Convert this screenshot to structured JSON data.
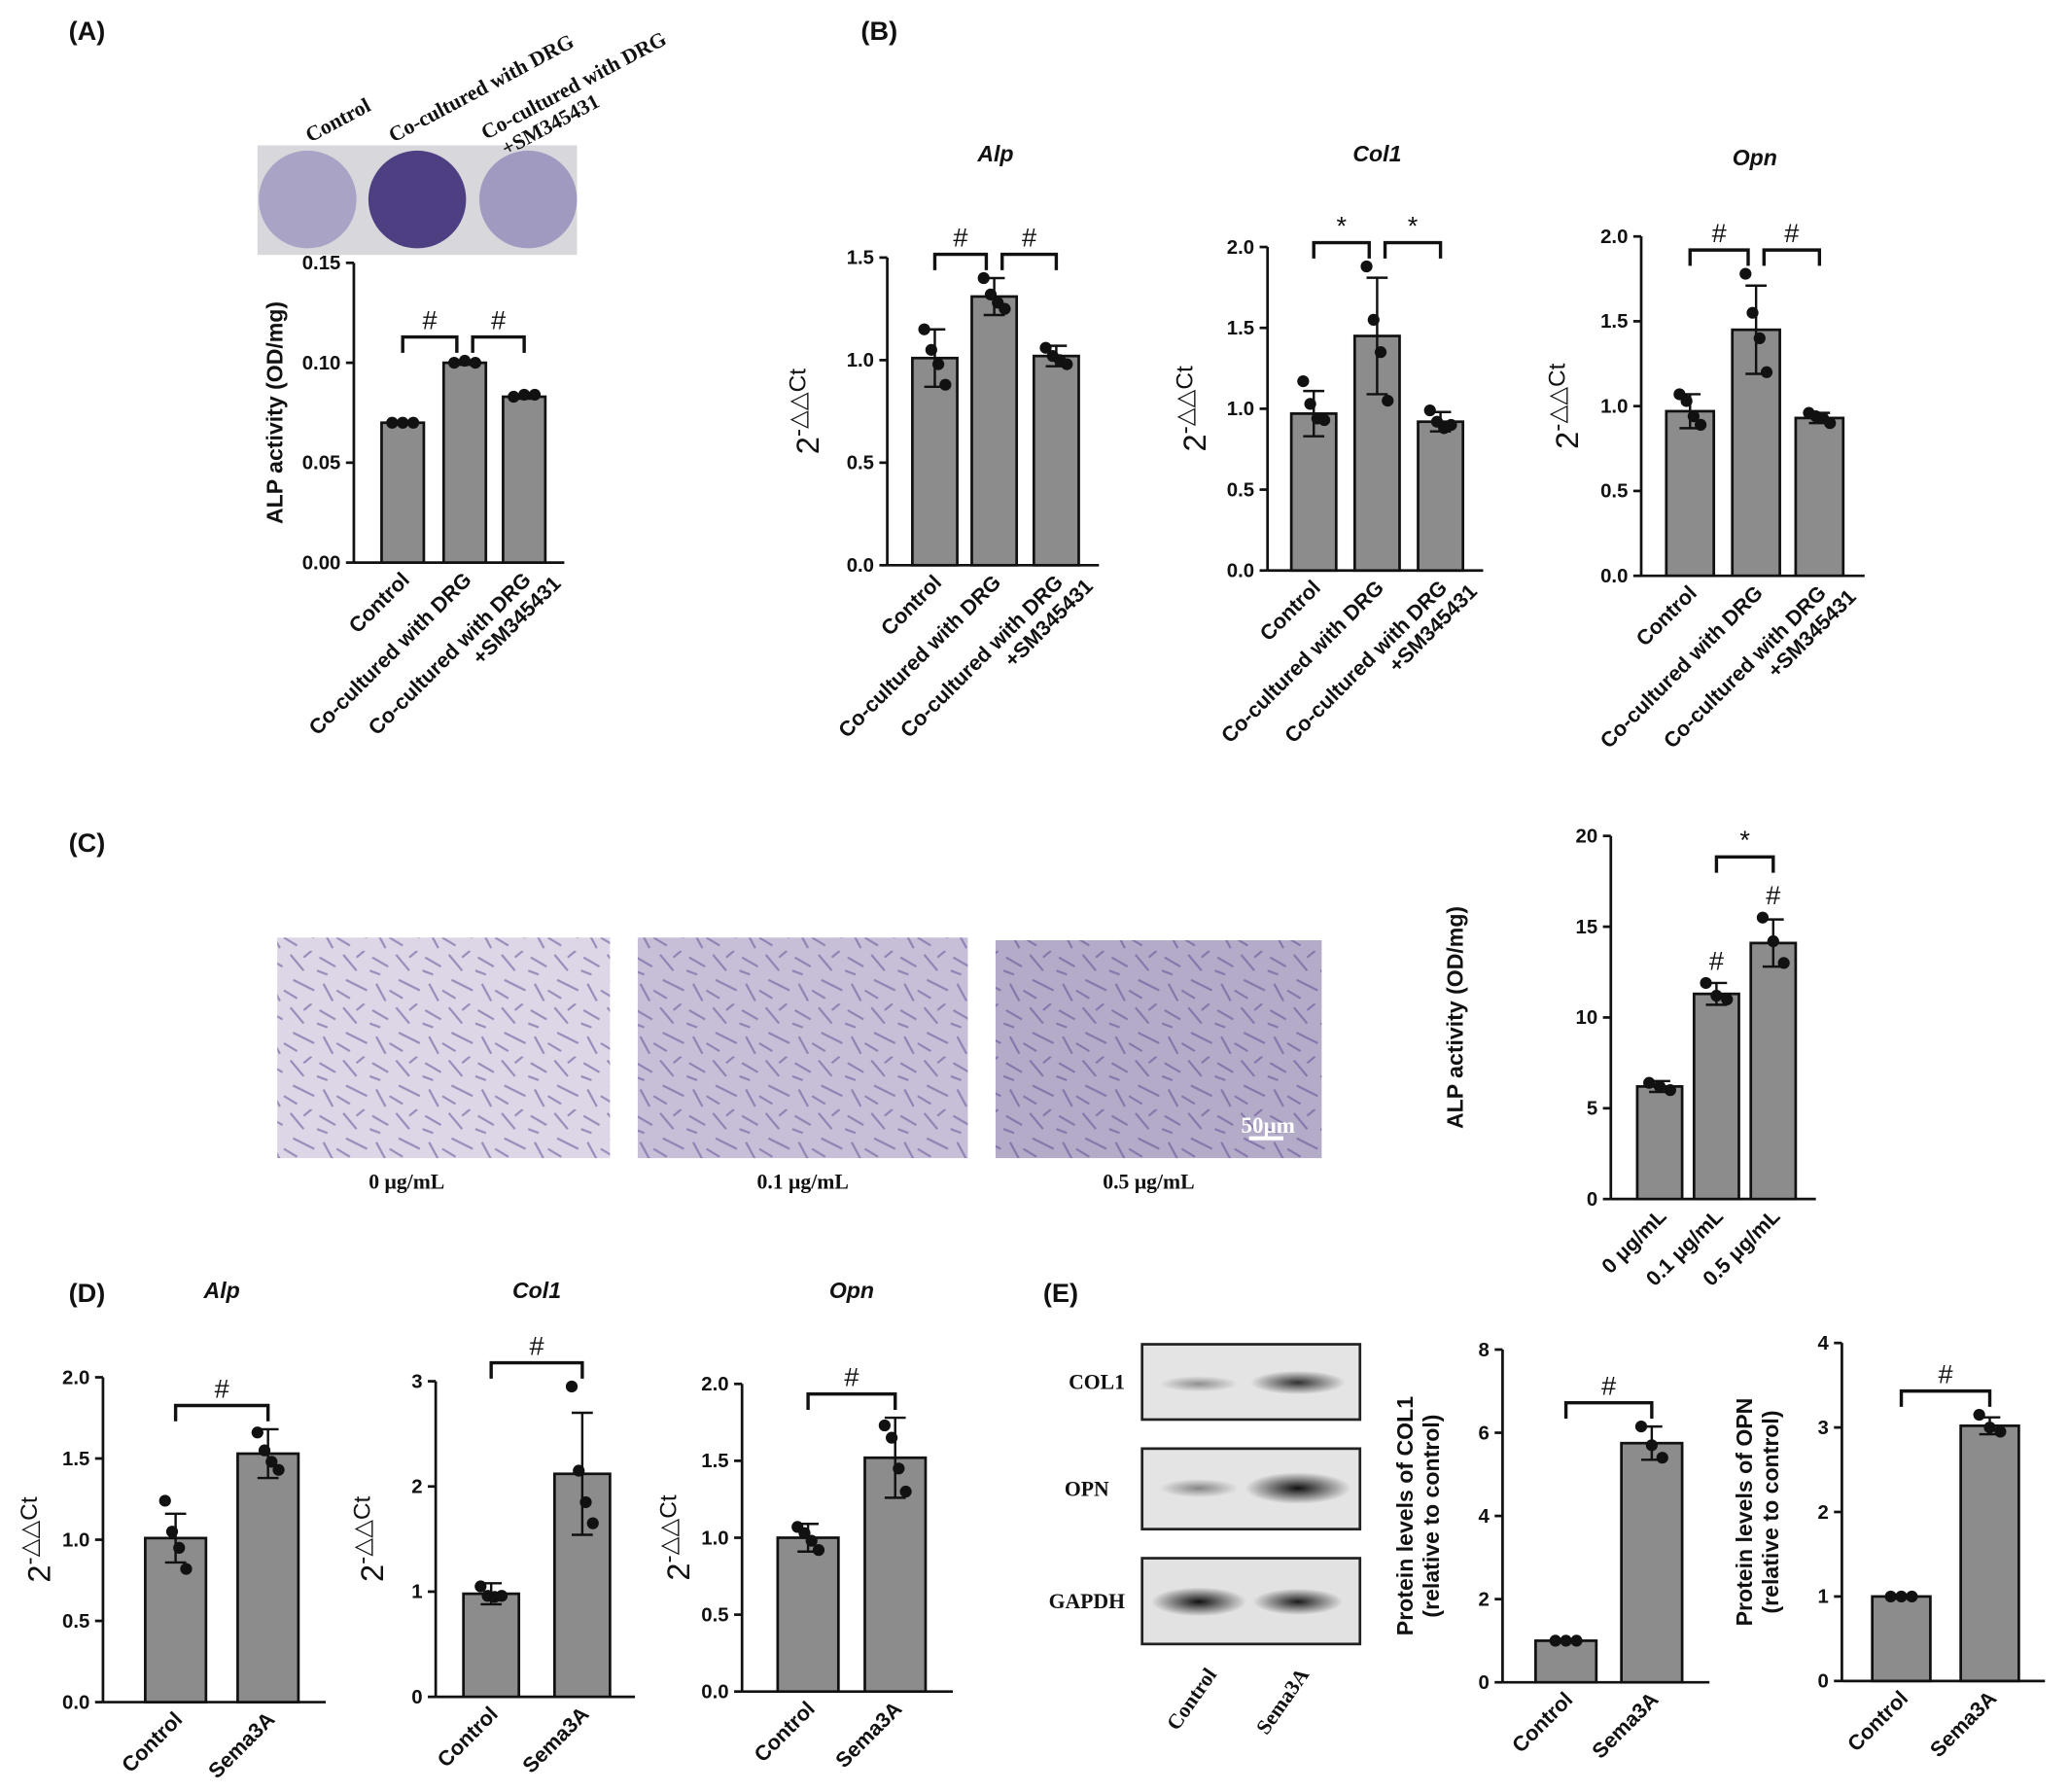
{
  "panel_labels": [
    "(A)",
    "(B)",
    "(C)",
    "(D)",
    "(E)"
  ],
  "plate_labels": [
    "Control",
    "Co-cultured with DRG",
    [
      "Co-cultured with DRG",
      "+SM345431"
    ]
  ],
  "micrograph_labels": [
    "0 μg/mL",
    "0.1 μg/mL",
    "0.5 μg/mL"
  ],
  "scale_bar": "50μm",
  "blot_rows": [
    "COL1",
    "OPN",
    "GAPDH"
  ],
  "blot_lanes": [
    "Control",
    "Sema3A"
  ],
  "chart_data": [
    {
      "type": "bar",
      "ylabel": "ALP activity (OD/mg)",
      "color": "#8c8c8c",
      "categories": [
        "Control",
        "Co-cultured with DRG",
        [
          "Co-cultured with DRG",
          "+SM345431"
        ]
      ],
      "values": [
        0.07,
        0.1,
        0.083
      ],
      "errors": [
        0.001,
        0.001,
        0.001
      ],
      "points": [
        [
          0.07,
          0.07,
          0.07
        ],
        [
          0.1,
          0.101,
          0.1
        ],
        [
          0.083,
          0.084,
          0.084
        ]
      ],
      "ylim": [
        0,
        0.15
      ],
      "yticks": [
        {
          "value": 0,
          "label": "0.00"
        },
        0.05,
        {
          "value": 0.1,
          "label": "0.10"
        },
        0.15
      ],
      "brackets": [
        {
          "label": "#",
          "between": [
            0,
            1
          ]
        },
        {
          "label": "#",
          "between": [
            1,
            2
          ]
        }
      ]
    },
    {
      "type": "bar",
      "title": "Alp",
      "ylabel": {
        "base": "2",
        "sup": "-△△Ct"
      },
      "color": "#8c8c8c",
      "categories": [
        "Control",
        "Co-cultured with DRG",
        [
          "Co-cultured with DRG",
          "+SM345431"
        ]
      ],
      "values": [
        1.01,
        1.31,
        1.02
      ],
      "errors": [
        0.14,
        0.09,
        0.05
      ],
      "points": [
        [
          1.15,
          1.05,
          0.98,
          0.88
        ],
        [
          1.4,
          1.32,
          1.28,
          1.25
        ],
        [
          1.06,
          1.02,
          1.0,
          0.98
        ]
      ],
      "ylim": [
        0,
        1.5
      ],
      "yticks": [
        {
          "value": 0,
          "label": "0.0"
        },
        0.5,
        {
          "value": 1,
          "label": "1.0"
        },
        1.5
      ],
      "brackets": [
        {
          "label": "#",
          "between": [
            0,
            1
          ]
        },
        {
          "label": "#",
          "between": [
            1,
            2
          ]
        }
      ]
    },
    {
      "type": "bar",
      "title": "Col1",
      "ylabel": {
        "base": "2",
        "sup": "-△△Ct"
      },
      "color": "#8c8c8c",
      "categories": [
        "Control",
        "Co-cultured with DRG",
        [
          "Co-cultured with DRG",
          "+SM345431"
        ]
      ],
      "values": [
        0.97,
        1.45,
        0.92
      ],
      "errors": [
        0.14,
        0.36,
        0.06
      ],
      "points": [
        [
          1.17,
          1.03,
          0.94,
          0.93
        ],
        [
          1.88,
          1.55,
          1.35,
          1.05
        ],
        [
          0.99,
          0.92,
          0.88,
          0.9
        ]
      ],
      "ylim": [
        0,
        2
      ],
      "yticks": [
        {
          "value": 0,
          "label": "0.0"
        },
        0.5,
        {
          "value": 1,
          "label": "1.0"
        },
        1.5,
        {
          "value": 2,
          "label": "2.0"
        }
      ],
      "brackets": [
        {
          "label": "*",
          "between": [
            0,
            1
          ]
        },
        {
          "label": "*",
          "between": [
            1,
            2
          ]
        }
      ]
    },
    {
      "type": "bar",
      "title": "Opn",
      "ylabel": {
        "base": "2",
        "sup": "-△△Ct"
      },
      "color": "#8c8c8c",
      "categories": [
        "Control",
        "Co-cultured with DRG",
        [
          "Co-cultured with DRG",
          "+SM345431"
        ]
      ],
      "values": [
        0.97,
        1.45,
        0.93
      ],
      "errors": [
        0.1,
        0.26,
        0.03
      ],
      "points": [
        [
          1.07,
          1.03,
          0.94,
          0.89
        ],
        [
          1.78,
          1.55,
          1.4,
          1.2
        ],
        [
          0.96,
          0.94,
          0.93,
          0.9
        ]
      ],
      "ylim": [
        0,
        2
      ],
      "yticks": [
        {
          "value": 0,
          "label": "0.0"
        },
        0.5,
        {
          "value": 1,
          "label": "1.0"
        },
        1.5,
        {
          "value": 2,
          "label": "2.0"
        }
      ],
      "brackets": [
        {
          "label": "#",
          "between": [
            0,
            1
          ]
        },
        {
          "label": "#",
          "between": [
            1,
            2
          ]
        }
      ]
    },
    {
      "type": "bar",
      "ylabel": "ALP activity (OD/mg)",
      "color": "#8c8c8c",
      "categories": [
        "0 μg/mL",
        "0.1 μg/mL",
        "0.5 μg/mL"
      ],
      "values": [
        6.2,
        11.3,
        14.1
      ],
      "errors": [
        0.3,
        0.6,
        1.3
      ],
      "points": [
        [
          6.4,
          6.2,
          6.0
        ],
        [
          11.9,
          11.2,
          11.0
        ],
        [
          15.5,
          14.2,
          13.0
        ]
      ],
      "ylim": [
        0,
        20
      ],
      "yticks": [
        0,
        5,
        10,
        15,
        20
      ],
      "marks": [
        {
          "label": "#",
          "category": 1
        },
        {
          "label": "#",
          "category": 2
        }
      ],
      "brackets": [
        {
          "label": "*",
          "between": [
            1,
            2
          ]
        }
      ]
    },
    {
      "type": "bar",
      "title": "Alp",
      "ylabel": {
        "base": "2",
        "sup": "-△△Ct"
      },
      "color": "#8c8c8c",
      "categories": [
        "Control",
        "Sema3A"
      ],
      "values": [
        1.01,
        1.53
      ],
      "errors": [
        0.15,
        0.15
      ],
      "points": [
        [
          1.24,
          1.05,
          0.95,
          0.82
        ],
        [
          1.66,
          1.55,
          1.48,
          1.43
        ]
      ],
      "ylim": [
        0,
        2
      ],
      "yticks": [
        {
          "value": 0,
          "label": "0.0"
        },
        0.5,
        {
          "value": 1,
          "label": "1.0"
        },
        1.5,
        {
          "value": 2,
          "label": "2.0"
        }
      ],
      "brackets": [
        {
          "label": "#",
          "between": [
            0,
            1
          ]
        }
      ]
    },
    {
      "type": "bar",
      "title": "Col1",
      "ylabel": {
        "base": "2",
        "sup": "-△△Ct"
      },
      "color": "#8c8c8c",
      "categories": [
        "Control",
        "Sema3A"
      ],
      "values": [
        0.98,
        2.12
      ],
      "errors": [
        0.1,
        0.58
      ],
      "points": [
        [
          1.05,
          0.96,
          0.95,
          0.96
        ],
        [
          2.95,
          2.15,
          1.85,
          1.65
        ]
      ],
      "ylim": [
        0,
        3
      ],
      "yticks": [
        0,
        1,
        2,
        3
      ],
      "brackets": [
        {
          "label": "#",
          "between": [
            0,
            1
          ]
        }
      ]
    },
    {
      "type": "bar",
      "title": "Opn",
      "ylabel": {
        "base": "2",
        "sup": "-△△Ct"
      },
      "color": "#8c8c8c",
      "categories": [
        "Control",
        "Sema3A"
      ],
      "values": [
        1.0,
        1.52
      ],
      "errors": [
        0.09,
        0.26
      ],
      "points": [
        [
          1.07,
          1.03,
          0.98,
          0.92
        ],
        [
          1.73,
          1.65,
          1.45,
          1.3
        ]
      ],
      "ylim": [
        0,
        2
      ],
      "yticks": [
        {
          "value": 0,
          "label": "0.0"
        },
        0.5,
        {
          "value": 1,
          "label": "1.0"
        },
        1.5,
        {
          "value": 2,
          "label": "2.0"
        }
      ],
      "brackets": [
        {
          "label": "#",
          "between": [
            0,
            1
          ]
        }
      ]
    },
    {
      "type": "bar",
      "ylabel": [
        "Protein levels of COL1",
        "(relative to control)"
      ],
      "color": "#8c8c8c",
      "categories": [
        "Control",
        "Sema3A"
      ],
      "values": [
        1.0,
        5.75
      ],
      "errors": [
        0.03,
        0.4
      ],
      "points": [
        [
          1.0,
          1.0,
          1.0
        ],
        [
          6.15,
          5.7,
          5.4
        ]
      ],
      "ylim": [
        0,
        8
      ],
      "yticks": [
        0,
        2,
        4,
        6,
        8
      ],
      "brackets": [
        {
          "label": "#",
          "between": [
            0,
            1
          ]
        }
      ]
    },
    {
      "type": "bar",
      "ylabel": [
        "Protein levels of OPN",
        "(relative to control)"
      ],
      "color": "#8c8c8c",
      "categories": [
        "Control",
        "Sema3A"
      ],
      "values": [
        1.0,
        3.02
      ],
      "errors": [
        0.02,
        0.1
      ],
      "points": [
        [
          1.0,
          1.0,
          1.0
        ],
        [
          3.15,
          3.0,
          2.95
        ]
      ],
      "ylim": [
        0,
        4
      ],
      "yticks": [
        0,
        1,
        2,
        3,
        4
      ],
      "brackets": [
        {
          "label": "#",
          "between": [
            0,
            1
          ]
        }
      ]
    }
  ]
}
